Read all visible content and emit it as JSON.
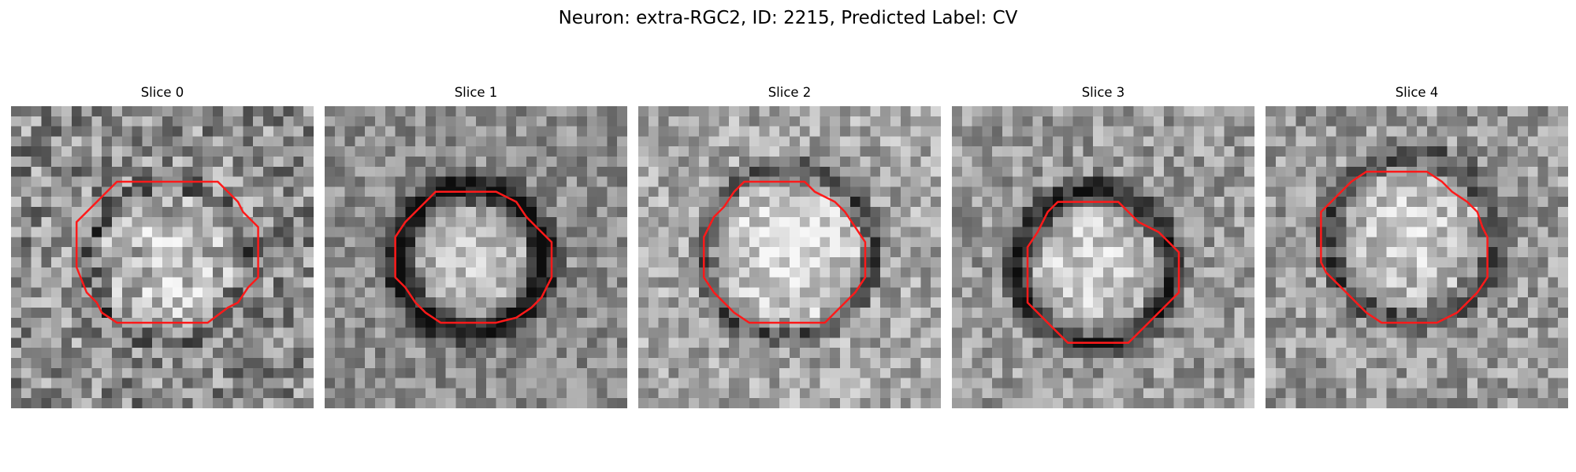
{
  "figure": {
    "title": "Neuron: extra-RGC2, ID: 2215, Predicted Label: CV",
    "contour_color": "#ff1a1a",
    "colormap": "grayscale"
  },
  "panels": [
    {
      "title": "Slice 0"
    },
    {
      "title": "Slice 1"
    },
    {
      "title": "Slice 2"
    },
    {
      "title": "Slice 3"
    },
    {
      "title": "Slice 4"
    }
  ]
}
